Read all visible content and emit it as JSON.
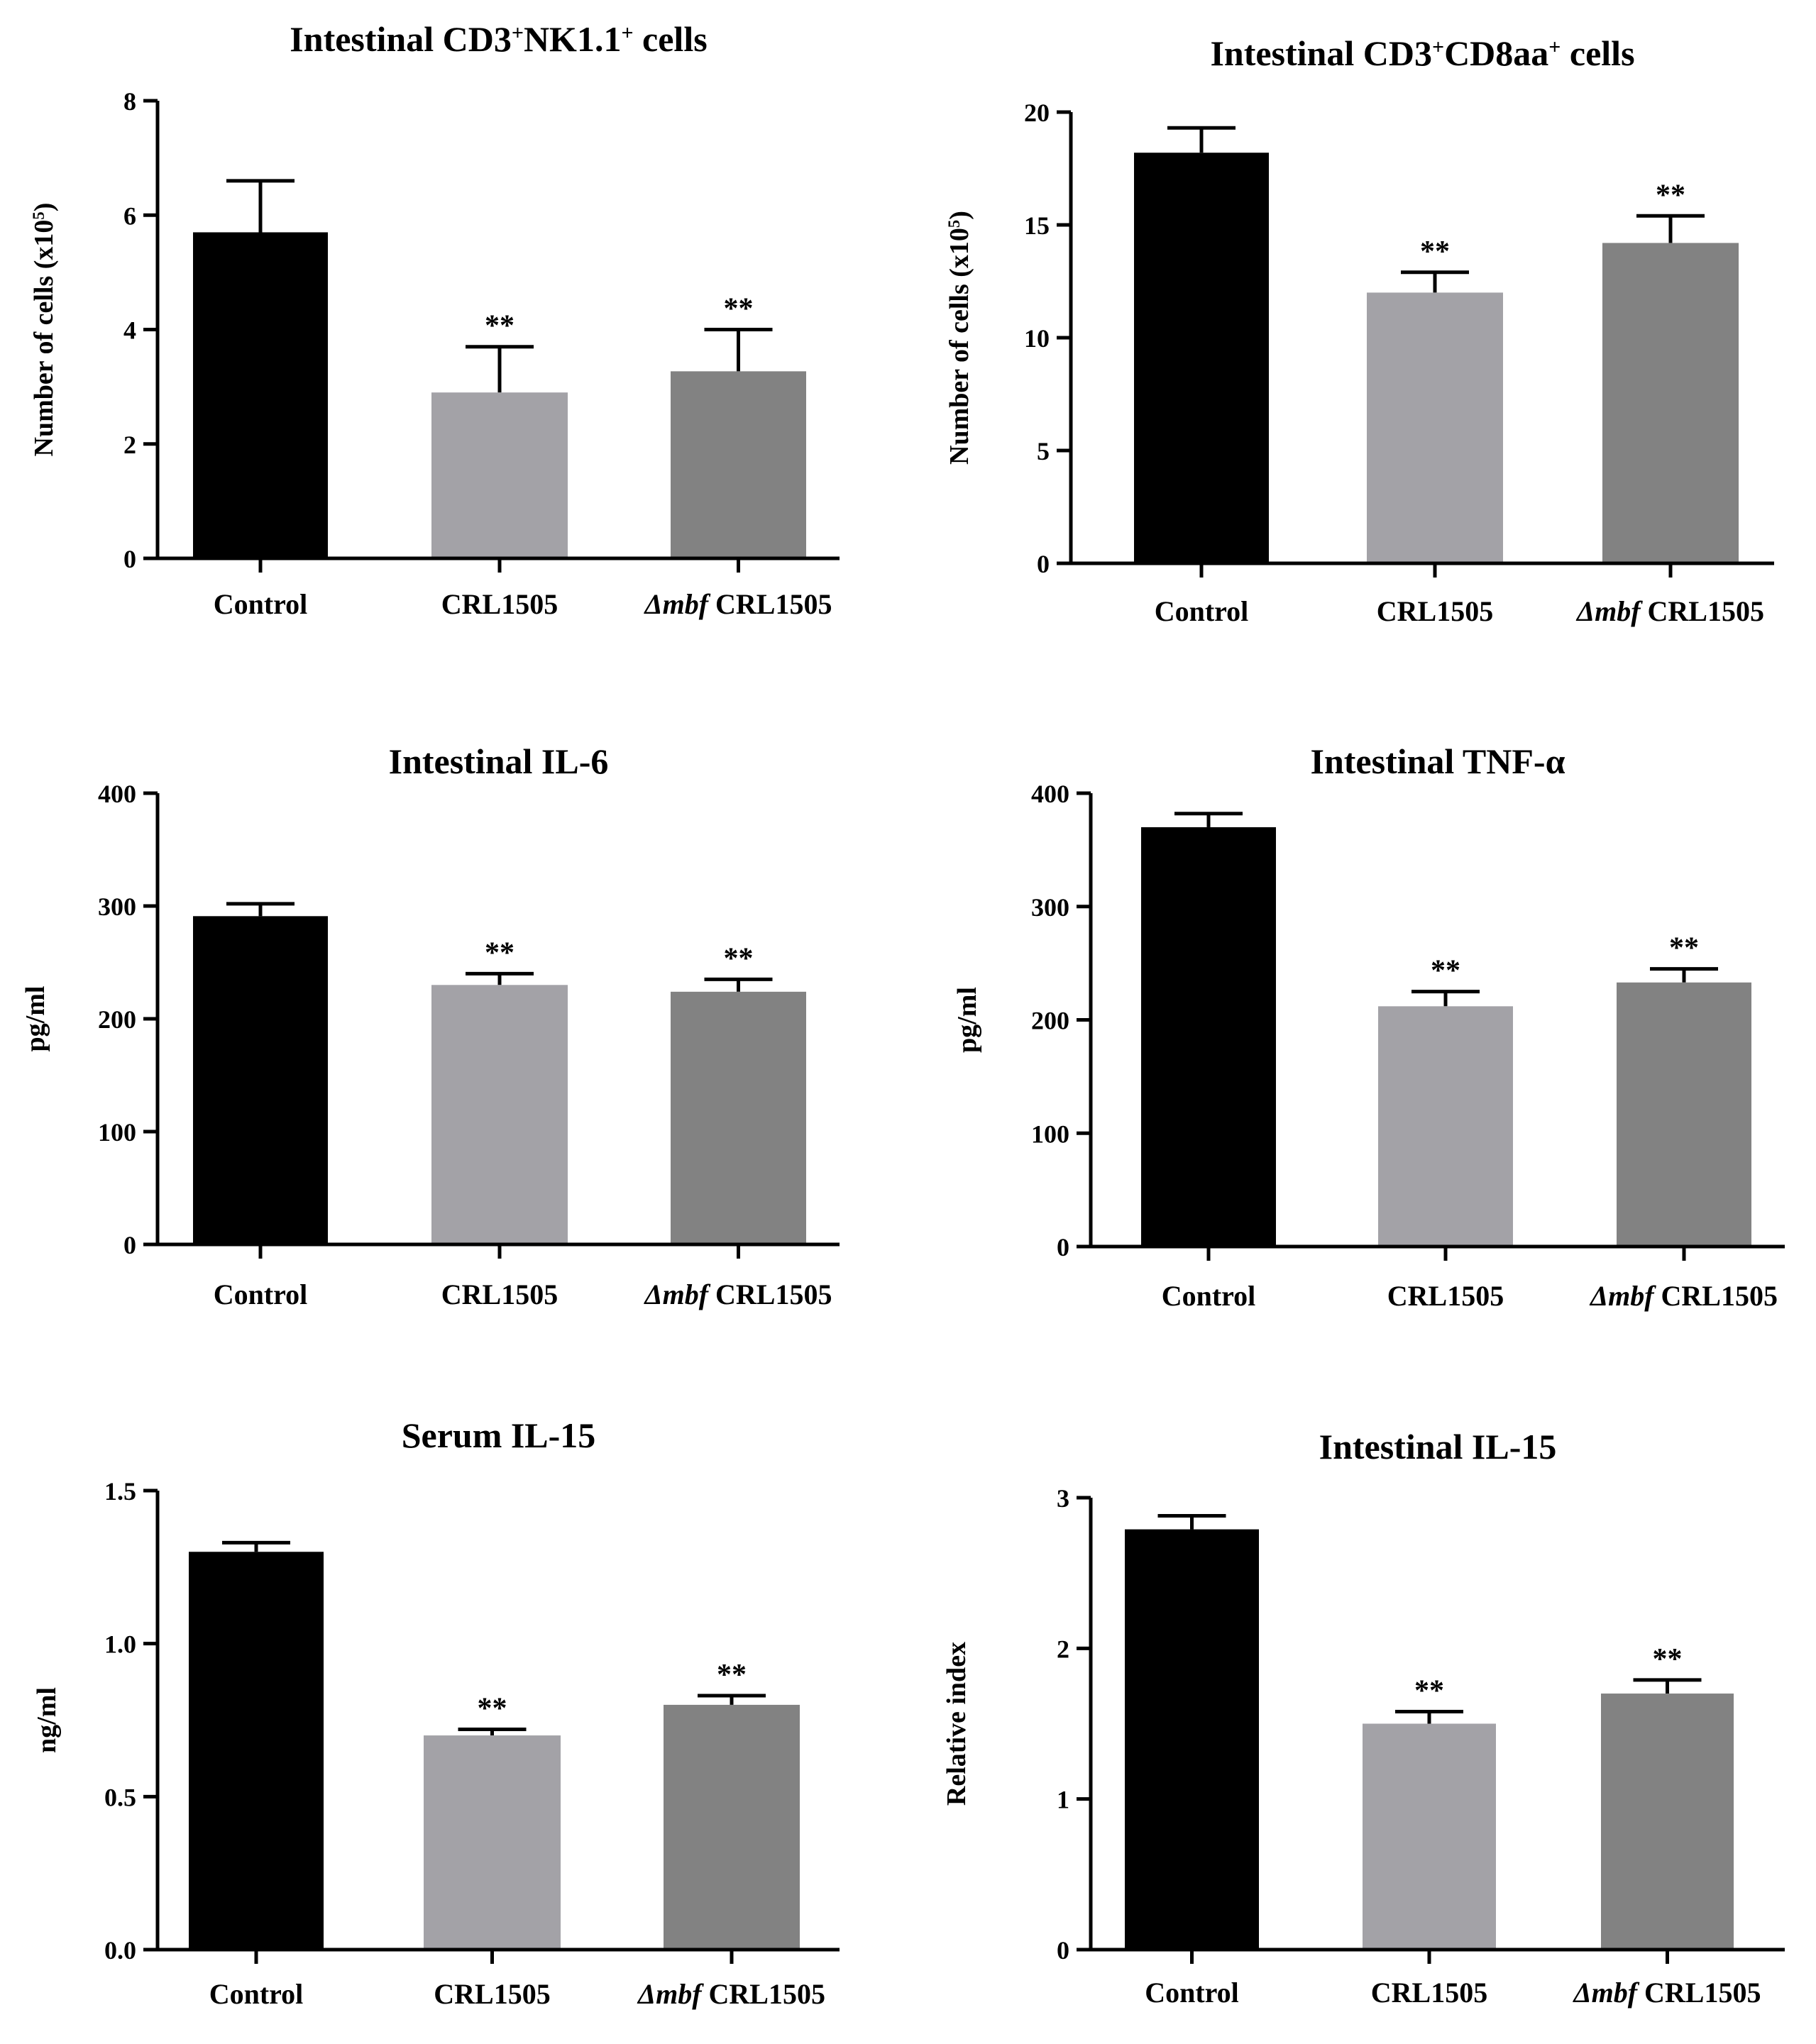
{
  "figure": {
    "categories": [
      {
        "prefix": "",
        "name": "Control"
      },
      {
        "prefix": "",
        "name": "CRL1505"
      },
      {
        "prefix": "Δmbf",
        "name": " CRL1505"
      }
    ],
    "bar_colors": [
      "#000000",
      "#a3a2a7",
      "#828282"
    ],
    "significance_marker": "**"
  },
  "chart_data": [
    {
      "type": "bar",
      "title_parts": [
        {
          "t": "Intestinal CD3"
        },
        {
          "t": "+",
          "sup": true
        },
        {
          "t": "NK1.1"
        },
        {
          "t": "+",
          "sup": true
        },
        {
          "t": " cells"
        }
      ],
      "ylabel_parts": [
        {
          "t": "Number of cells (x10"
        },
        {
          "t": "5",
          "sup": true
        },
        {
          "t": ")"
        }
      ],
      "ylim": [
        0,
        8
      ],
      "yticks": [
        "0",
        "2",
        "4",
        "6",
        "8"
      ],
      "values": [
        5.7,
        2.9,
        3.27
      ],
      "errors": [
        0.9,
        0.8,
        0.73
      ],
      "significance": [
        "",
        "**",
        "**"
      ]
    },
    {
      "type": "bar",
      "title_parts": [
        {
          "t": "Intestinal CD3"
        },
        {
          "t": "+",
          "sup": true
        },
        {
          "t": "CD8aa"
        },
        {
          "t": "+",
          "sup": true
        },
        {
          "t": " cells"
        }
      ],
      "ylabel_parts": [
        {
          "t": "Number of cells (x10"
        },
        {
          "t": "5",
          "sup": true
        },
        {
          "t": ")"
        }
      ],
      "ylim": [
        0,
        20
      ],
      "yticks": [
        "0",
        "5",
        "10",
        "15",
        "20"
      ],
      "values": [
        18.2,
        12.0,
        14.2
      ],
      "errors": [
        1.1,
        0.9,
        1.2
      ],
      "significance": [
        "",
        "**",
        "**"
      ]
    },
    {
      "type": "bar",
      "title_parts": [
        {
          "t": "Intestinal IL-6"
        }
      ],
      "ylabel_parts": [
        {
          "t": "pg/ml"
        }
      ],
      "ylim": [
        0,
        400
      ],
      "yticks": [
        "0",
        "100",
        "200",
        "300",
        "400"
      ],
      "values": [
        291,
        230,
        224
      ],
      "errors": [
        11,
        10,
        11
      ],
      "significance": [
        "",
        "**",
        "**"
      ]
    },
    {
      "type": "bar",
      "title_parts": [
        {
          "t": "Intestinal TNF-α"
        }
      ],
      "ylabel_parts": [
        {
          "t": "pg/ml"
        }
      ],
      "ylim": [
        0,
        400
      ],
      "yticks": [
        "0",
        "100",
        "200",
        "300",
        "400"
      ],
      "values": [
        370,
        212,
        233
      ],
      "errors": [
        12,
        13,
        12
      ],
      "significance": [
        "",
        "**",
        "**"
      ]
    },
    {
      "type": "bar",
      "title_parts": [
        {
          "t": "Serum IL-15"
        }
      ],
      "ylabel_parts": [
        {
          "t": "ng/ml"
        }
      ],
      "ylim": [
        0,
        1.5
      ],
      "yticks": [
        "0.0",
        "0.5",
        "1.0",
        "1.5"
      ],
      "values": [
        1.3,
        0.7,
        0.8
      ],
      "errors": [
        0.03,
        0.02,
        0.03
      ],
      "significance": [
        "",
        "**",
        "**"
      ]
    },
    {
      "type": "bar",
      "title_parts": [
        {
          "t": "Intestinal IL-15"
        }
      ],
      "ylabel_parts": [
        {
          "t": "Relative index"
        }
      ],
      "ylim": [
        0,
        3
      ],
      "yticks": [
        "0",
        "1",
        "2",
        "3"
      ],
      "values": [
        2.79,
        1.5,
        1.7
      ],
      "errors": [
        0.09,
        0.08,
        0.09
      ],
      "significance": [
        "",
        "**",
        "**"
      ]
    }
  ]
}
